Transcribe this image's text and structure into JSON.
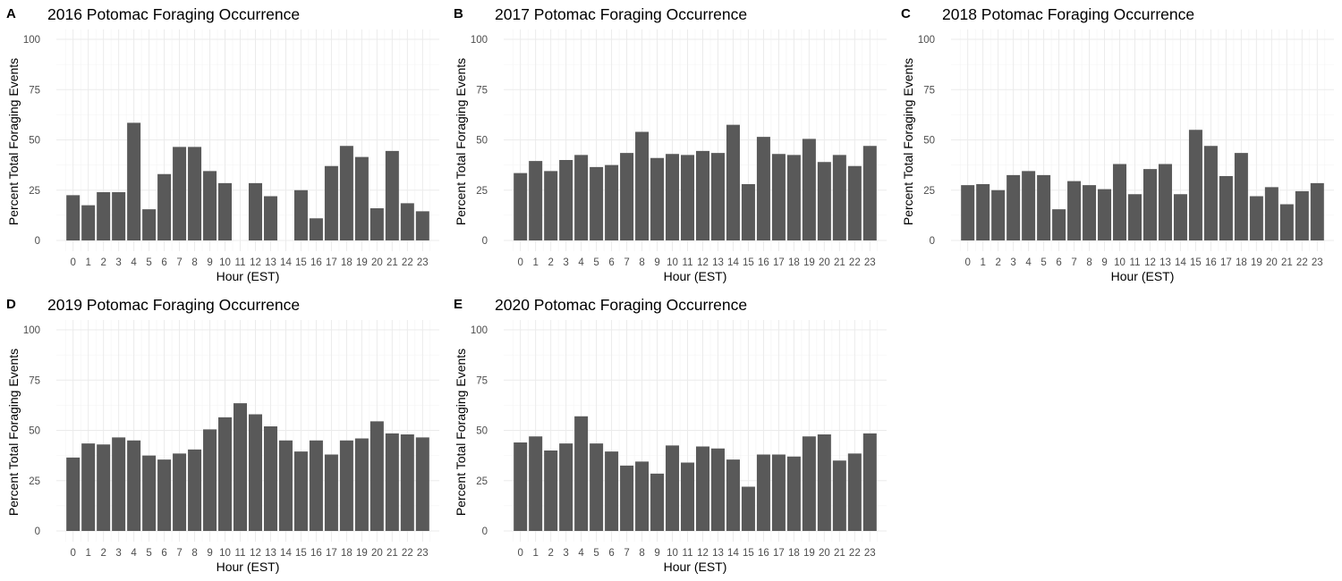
{
  "chart_data": [
    {
      "type": "bar",
      "panel_label": "A",
      "title": "2016 Potomac Foraging Occurrence",
      "xlabel": "Hour (EST)",
      "ylabel": "Percent Total Foraging Events",
      "categories": [
        "0",
        "1",
        "2",
        "3",
        "4",
        "5",
        "6",
        "7",
        "8",
        "9",
        "10",
        "11",
        "12",
        "13",
        "14",
        "15",
        "16",
        "17",
        "18",
        "19",
        "20",
        "21",
        "22",
        "23"
      ],
      "values": [
        22.5,
        17.5,
        24,
        24,
        58.5,
        15.5,
        33,
        46.5,
        46.5,
        34.5,
        28.5,
        0,
        28.5,
        22,
        0,
        25,
        11,
        37,
        47,
        41.5,
        16,
        44.5,
        18.5,
        14.5
      ],
      "yticks": [
        0,
        25,
        50,
        75,
        100
      ],
      "ylim": [
        0,
        100
      ],
      "grid": true
    },
    {
      "type": "bar",
      "panel_label": "B",
      "title": "2017 Potomac Foraging Occurrence",
      "xlabel": "Hour (EST)",
      "ylabel": "Percent Total Foraging Events",
      "categories": [
        "0",
        "1",
        "2",
        "3",
        "4",
        "5",
        "6",
        "7",
        "8",
        "9",
        "10",
        "11",
        "12",
        "13",
        "14",
        "15",
        "16",
        "17",
        "18",
        "19",
        "20",
        "21",
        "22",
        "23"
      ],
      "values": [
        33.5,
        39.5,
        34.5,
        40,
        42.5,
        36.5,
        37.5,
        43.5,
        54,
        41,
        43,
        42.5,
        44.5,
        43.5,
        57.5,
        28,
        51.5,
        43,
        42.5,
        50.5,
        39,
        42.5,
        37,
        47
      ],
      "yticks": [
        0,
        25,
        50,
        75,
        100
      ],
      "ylim": [
        0,
        100
      ],
      "grid": true
    },
    {
      "type": "bar",
      "panel_label": "C",
      "title": "2018 Potomac Foraging Occurrence",
      "xlabel": "Hour (EST)",
      "ylabel": "Percent Total Foraging Events",
      "categories": [
        "0",
        "1",
        "2",
        "3",
        "4",
        "5",
        "6",
        "7",
        "8",
        "9",
        "10",
        "11",
        "12",
        "13",
        "14",
        "15",
        "16",
        "17",
        "18",
        "19",
        "20",
        "21",
        "22",
        "23"
      ],
      "values": [
        27.5,
        28,
        25,
        32.5,
        34.5,
        32.5,
        15.5,
        29.5,
        27.5,
        25.5,
        38,
        23,
        35.5,
        38,
        23,
        55,
        47,
        32,
        43.5,
        22,
        26.5,
        18,
        24.5,
        28.5
      ],
      "yticks": [
        0,
        25,
        50,
        75,
        100
      ],
      "ylim": [
        0,
        100
      ],
      "grid": true
    },
    {
      "type": "bar",
      "panel_label": "D",
      "title": "2019 Potomac Foraging Occurrence",
      "xlabel": "Hour (EST)",
      "ylabel": "Percent Total Foraging Events",
      "categories": [
        "0",
        "1",
        "2",
        "3",
        "4",
        "5",
        "6",
        "7",
        "8",
        "9",
        "10",
        "11",
        "12",
        "13",
        "14",
        "15",
        "16",
        "17",
        "18",
        "19",
        "20",
        "21",
        "22",
        "23"
      ],
      "values": [
        36.5,
        43.5,
        43,
        46.5,
        45,
        37.5,
        35.5,
        38.5,
        40.5,
        50.5,
        56.5,
        63.5,
        58,
        52,
        45,
        39.5,
        45,
        38,
        45,
        46,
        54.5,
        48.5,
        48,
        46.5
      ],
      "yticks": [
        0,
        25,
        50,
        75,
        100
      ],
      "ylim": [
        0,
        100
      ],
      "grid": true
    },
    {
      "type": "bar",
      "panel_label": "E",
      "title": "2020 Potomac Foraging Occurrence",
      "xlabel": "Hour (EST)",
      "ylabel": "Percent Total Foraging Events",
      "categories": [
        "0",
        "1",
        "2",
        "3",
        "4",
        "5",
        "6",
        "7",
        "8",
        "9",
        "10",
        "11",
        "12",
        "13",
        "14",
        "15",
        "16",
        "17",
        "18",
        "19",
        "20",
        "21",
        "22",
        "23"
      ],
      "values": [
        44,
        47,
        40,
        43.5,
        57,
        43.5,
        39.5,
        32.5,
        34.5,
        28.5,
        42.5,
        34,
        42,
        41,
        35.5,
        22,
        38,
        38,
        37,
        47,
        48,
        35,
        38.5,
        48.5
      ],
      "yticks": [
        0,
        25,
        50,
        75,
        100
      ],
      "ylim": [
        0,
        100
      ],
      "grid": true
    }
  ],
  "colors": {
    "bar": "#595959",
    "grid_major": "#ebebeb",
    "grid_minor": "#f3f3f3",
    "tick_text": "#4d4d4d"
  }
}
